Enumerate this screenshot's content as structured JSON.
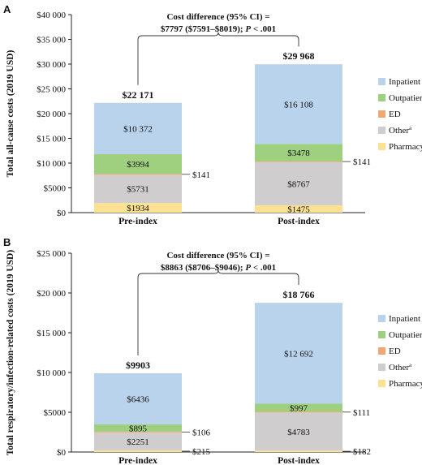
{
  "colors": {
    "Inpatient": "#b9d3ec",
    "Outpatient": "#9fd07f",
    "ED": "#f0a774",
    "Other": "#cfcdcd",
    "Pharmacy": "#fbe293"
  },
  "chart_data": [
    {
      "type": "bar",
      "panel": "A",
      "ylabel": "Total all-cause costs (2019 USD)",
      "ylim": [
        0,
        40000
      ],
      "yticks": [
        "$0",
        "$5000",
        "$10 000",
        "$15 000",
        "$20 000",
        "$25 000",
        "$30 000",
        "$35 000",
        "$40 000"
      ],
      "categories": [
        "Pre-index",
        "Post-index"
      ],
      "totals": [
        "$22 171",
        "$29 968"
      ],
      "series": [
        {
          "name": "Pharmacy",
          "values": [
            1934,
            1475
          ],
          "labels": [
            "$1934",
            "$1475"
          ]
        },
        {
          "name": "Other",
          "values": [
            5731,
            8767
          ],
          "labels": [
            "$5731",
            "$8767"
          ]
        },
        {
          "name": "ED",
          "values": [
            141,
            141
          ],
          "labels": [
            "$141",
            "$141"
          ]
        },
        {
          "name": "Outpatient",
          "values": [
            3994,
            3478
          ],
          "labels": [
            "$3994",
            "$3478"
          ]
        },
        {
          "name": "Inpatient",
          "values": [
            10372,
            16108
          ],
          "labels": [
            "$10 372",
            "$16 108"
          ]
        }
      ],
      "legend": [
        "Inpatient",
        "Outpatient",
        "ED",
        "Other",
        "Pharmacy"
      ],
      "annotation": [
        "Cost difference (95% CI) =",
        "$7797 ($7591–$8019); P < .001"
      ],
      "legend_position": "right"
    },
    {
      "type": "bar",
      "panel": "B",
      "ylabel": "Total respiratory/infection-related costs (2019 USD)",
      "ylim": [
        0,
        25000
      ],
      "yticks": [
        "$0",
        "$5000",
        "$10 000",
        "$15 000",
        "$20 000",
        "$25 000"
      ],
      "categories": [
        "Pre-index",
        "Post-index"
      ],
      "totals": [
        "$9903",
        "$18 766"
      ],
      "series": [
        {
          "name": "Pharmacy",
          "values": [
            215,
            182
          ],
          "labels": [
            "$215",
            "$182"
          ]
        },
        {
          "name": "Other",
          "values": [
            2251,
            4783
          ],
          "labels": [
            "$2251",
            "$4783"
          ]
        },
        {
          "name": "ED",
          "values": [
            106,
            111
          ],
          "labels": [
            "$106",
            "$111"
          ]
        },
        {
          "name": "Outpatient",
          "values": [
            895,
            997
          ],
          "labels": [
            "$895",
            "$997"
          ]
        },
        {
          "name": "Inpatient",
          "values": [
            6436,
            12692
          ],
          "labels": [
            "$6436",
            "$12 692"
          ]
        }
      ],
      "legend": [
        "Inpatient",
        "Outpatient",
        "ED",
        "Other",
        "Pharmacy"
      ],
      "annotation": [
        "Cost difference (95% CI) =",
        "$8863 ($8706–$9046); P < .001"
      ],
      "legend_position": "right"
    }
  ],
  "legend_superscript": "a"
}
